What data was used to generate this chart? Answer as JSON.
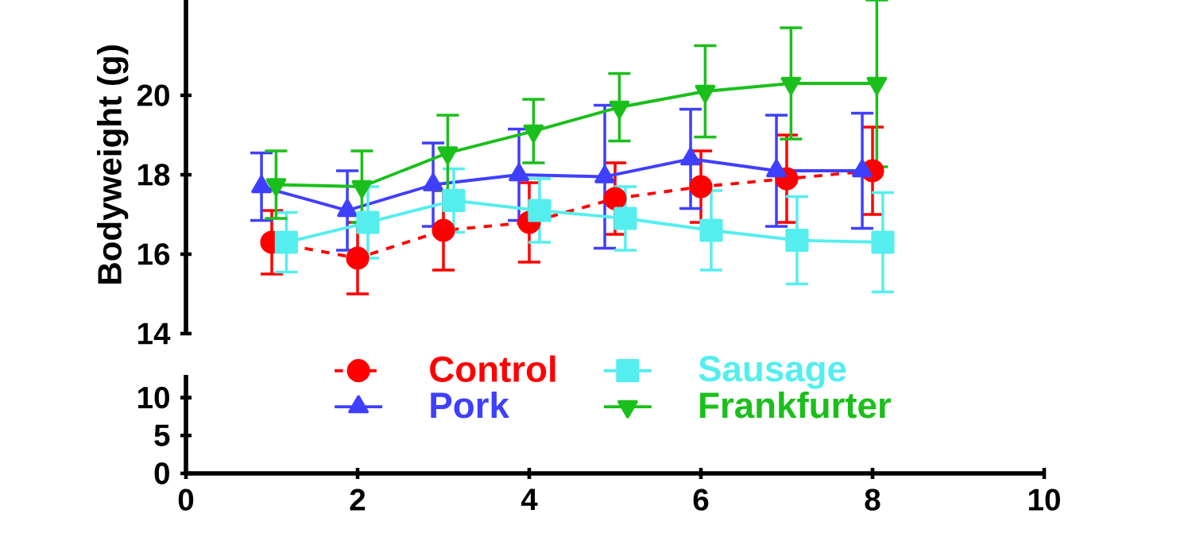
{
  "chart_data": [
    {
      "type": "line",
      "ylabel": "Bodyweight (g)",
      "xlim": [
        0,
        10
      ],
      "ylim": [
        14,
        22.5
      ],
      "yticks": [
        14,
        16,
        18,
        20
      ],
      "tick_labels": "y",
      "legend": "bottom",
      "series": [
        {
          "name": "Control",
          "color": "#ff0000",
          "marker": "circle",
          "line_style": "dashed",
          "x": [
            1,
            2,
            3,
            4,
            5,
            6,
            7,
            8
          ],
          "values": [
            16.3,
            15.9,
            16.6,
            16.8,
            17.4,
            17.7,
            17.9,
            18.1
          ],
          "errors": [
            0.8,
            0.9,
            1.0,
            1.0,
            0.9,
            0.9,
            1.1,
            1.1
          ]
        },
        {
          "name": "Pork",
          "color": "#3f3fff",
          "marker": "triangle",
          "line_style": "solid",
          "x": [
            0.88,
            1.88,
            2.88,
            3.88,
            4.88,
            5.88,
            6.88,
            7.88
          ],
          "values": [
            17.7,
            17.1,
            17.75,
            18.0,
            17.95,
            18.4,
            18.1,
            18.1
          ],
          "errors": [
            0.85,
            1.0,
            1.05,
            1.15,
            1.8,
            1.25,
            1.4,
            1.45
          ]
        },
        {
          "name": "Sausage",
          "color": "#55eeee",
          "marker": "square",
          "line_style": "solid",
          "x": [
            1.17,
            2.12,
            3.12,
            4.12,
            5.12,
            6.12,
            7.12,
            8.12
          ],
          "values": [
            16.3,
            16.8,
            17.35,
            17.1,
            16.9,
            16.6,
            16.35,
            16.3
          ],
          "errors": [
            0.75,
            0.9,
            0.8,
            0.8,
            0.8,
            1.0,
            1.1,
            1.25
          ]
        },
        {
          "name": "Frankfurter",
          "color": "#1bbf1b",
          "marker": "triangle down",
          "line_style": "solid",
          "x": [
            1.05,
            2.05,
            3.05,
            4.05,
            5.05,
            6.05,
            7.05,
            8.05
          ],
          "values": [
            17.75,
            17.7,
            18.55,
            19.1,
            19.7,
            20.1,
            20.3,
            20.3
          ],
          "errors": [
            0.85,
            0.9,
            0.95,
            0.8,
            0.85,
            1.15,
            1.4,
            2.1
          ]
        }
      ]
    },
    {
      "type": "line",
      "xlim": [
        0,
        10
      ],
      "xticks": [
        0,
        2,
        4,
        6,
        8,
        10
      ],
      "ylim": [
        0,
        13
      ],
      "yticks": [
        0,
        5,
        10
      ]
    }
  ]
}
